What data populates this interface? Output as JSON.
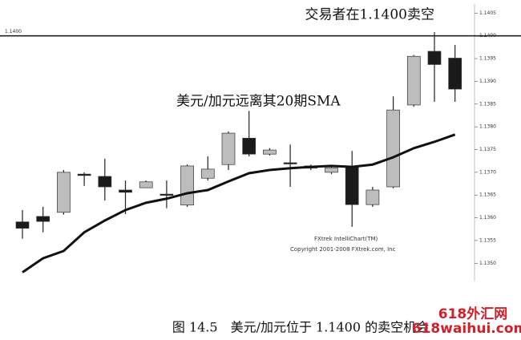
{
  "chart_data": {
    "type": "candlestick",
    "open": [
      1.13591,
      1.13603,
      1.13612,
      1.13696,
      1.13691,
      1.13661,
      1.13666,
      1.13652,
      1.13628,
      1.13687,
      1.13717,
      1.13775,
      1.1374,
      1.13721,
      1.13709,
      1.137,
      1.13712,
      1.13629,
      1.13668,
      1.13848,
      1.13966,
      1.13951
    ],
    "high": [
      1.13617,
      1.13624,
      1.13705,
      1.137,
      1.1373,
      1.13682,
      1.13682,
      1.13682,
      1.13717,
      1.13735,
      1.1379,
      1.13835,
      1.13753,
      1.13761,
      1.13717,
      1.13714,
      1.13747,
      1.13668,
      1.13867,
      1.13958,
      1.14008,
      1.1398
    ],
    "low": [
      1.13554,
      1.13568,
      1.13607,
      1.1367,
      1.13638,
      1.13608,
      1.13666,
      1.13621,
      1.13624,
      1.13682,
      1.13705,
      1.13735,
      1.13737,
      1.13668,
      1.13705,
      1.13696,
      1.1358,
      1.13624,
      1.13665,
      1.13844,
      1.13855,
      1.13855
    ],
    "close": [
      1.13577,
      1.13592,
      1.137,
      1.13693,
      1.13668,
      1.13656,
      1.13679,
      1.13652,
      1.13714,
      1.13707,
      1.13786,
      1.1374,
      1.13749,
      1.13721,
      1.13714,
      1.1371,
      1.13629,
      1.13661,
      1.13837,
      1.13955,
      1.13937,
      1.13883
    ],
    "sma": {
      "color": "#111111",
      "values": [
        1.1348,
        1.13511,
        1.13527,
        1.13568,
        1.13594,
        1.13617,
        1.13633,
        1.13642,
        1.13654,
        1.13661,
        1.1368,
        1.13698,
        1.13705,
        1.13709,
        1.13712,
        1.13714,
        1.13712,
        1.13717,
        1.13733,
        1.13753,
        1.13767,
        1.13783
      ]
    },
    "up_color": "#bdbdbd",
    "down_color": "#1a1a1a",
    "ylim": [
      1.1346,
      1.1407
    ],
    "yticks": [
      {
        "value": 1.135,
        "label": "1.1350"
      },
      {
        "value": 1.1355,
        "label": "1.1355"
      },
      {
        "value": 1.136,
        "label": "1.1360"
      },
      {
        "value": 1.1365,
        "label": "1.1365"
      },
      {
        "value": 1.137,
        "label": "1.1370"
      },
      {
        "value": 1.1375,
        "label": "1.1375"
      },
      {
        "value": 1.138,
        "label": "1.1380"
      },
      {
        "value": 1.1385,
        "label": "1.1385"
      },
      {
        "value": 1.139,
        "label": "1.1390"
      },
      {
        "value": 1.1395,
        "label": "1.1395"
      },
      {
        "value": 1.14,
        "label": "1.1400"
      },
      {
        "value": 1.1405,
        "label": "1.1405"
      }
    ],
    "hline": {
      "value": 1.14,
      "label": "1.1400"
    },
    "annotations": [
      "交易者在1.1400卖空",
      "美元/加元远离其20期SMA"
    ],
    "credits": [
      "FXtrek IntelliChart(TM)",
      "Copyright 2001-2008 FXtrek.com, Inc"
    ]
  },
  "caption": "图 14.5　美元/加元位于 1.1400 的卖空机会",
  "watermark": [
    "618外汇网",
    "618waihui.com"
  ]
}
